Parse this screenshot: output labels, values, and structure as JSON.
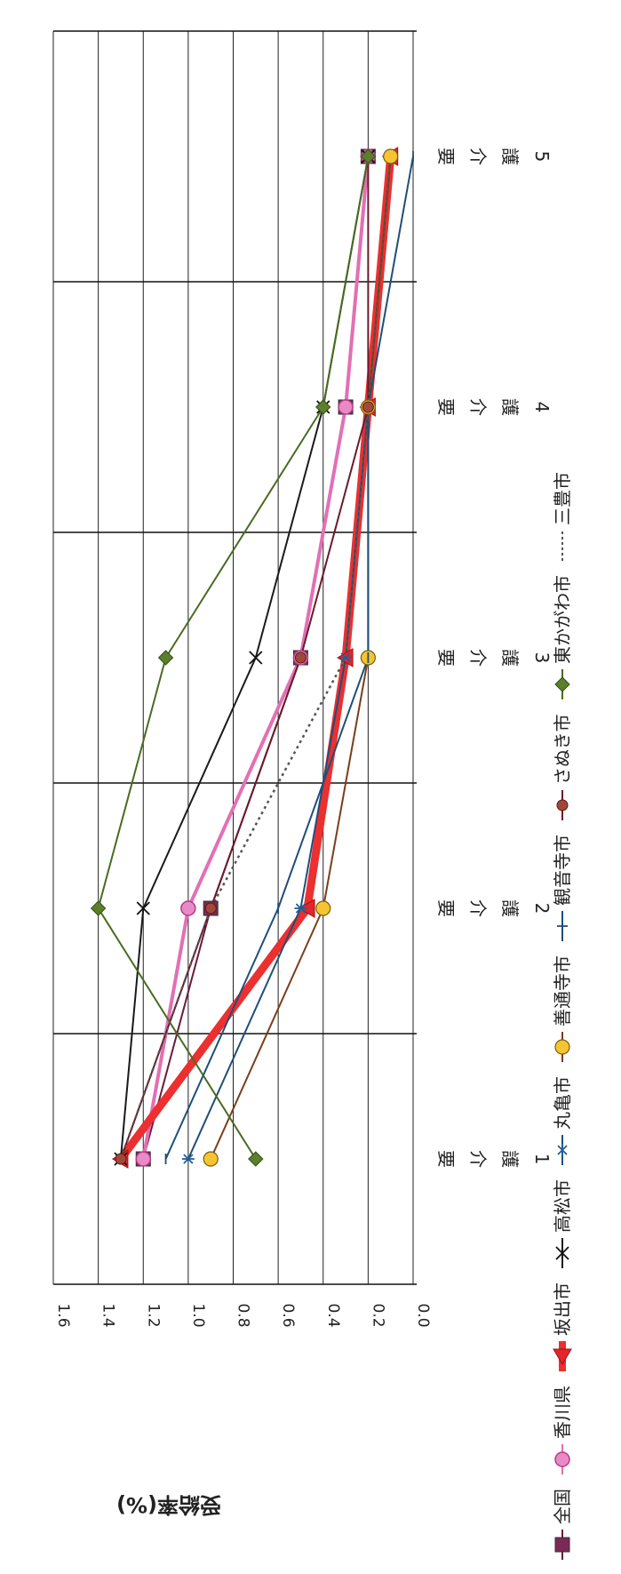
{
  "chart_data": {
    "type": "line",
    "ylabel": "受給率(%)",
    "ylim": [
      0,
      1.6
    ],
    "yticks": [
      "0.0",
      "0.2",
      "0.4",
      "0.6",
      "0.8",
      "1.0",
      "1.2",
      "1.4",
      "1.6"
    ],
    "categories": [
      {
        "label": "要介護",
        "num": "1"
      },
      {
        "label": "要介護",
        "num": "2"
      },
      {
        "label": "要介護",
        "num": "3"
      },
      {
        "label": "要介護",
        "num": "4"
      },
      {
        "label": "要介護",
        "num": "5"
      }
    ],
    "grid": true,
    "legend_position": "top",
    "series": [
      {
        "name": "全国",
        "values": [
          1.2,
          0.9,
          0.5,
          0.3,
          0.2
        ],
        "color": "#6a1b3d",
        "marker": "square"
      },
      {
        "name": "香川県",
        "values": [
          1.2,
          1.0,
          0.5,
          0.3,
          0.2
        ],
        "color": "#e36fb4",
        "marker": "circle"
      },
      {
        "name": "坂出市",
        "values": [
          1.3,
          0.47,
          0.3,
          0.2,
          0.1
        ],
        "color": "#e3262b",
        "marker": "triangle"
      },
      {
        "name": "高松市",
        "values": [
          1.3,
          1.2,
          0.7,
          0.4,
          0.2
        ],
        "color": "#1a1a1a",
        "marker": "x"
      },
      {
        "name": "丸亀市",
        "values": [
          1.0,
          0.5,
          0.3,
          0.2,
          0.1
        ],
        "color": "#1f4e79",
        "marker": "star"
      },
      {
        "name": "善通寺市",
        "values": [
          0.9,
          0.4,
          0.2,
          0.2,
          0.1
        ],
        "color": "#7a3e1a",
        "marker": "circle-yellow"
      },
      {
        "name": "観音寺市",
        "values": [
          1.1,
          0.6,
          0.2,
          0.2,
          0.0
        ],
        "color": "#1f4e79",
        "marker": "plus"
      },
      {
        "name": "さぬき市",
        "values": [
          1.3,
          0.9,
          0.5,
          0.2,
          0.2
        ],
        "color": "#6b1a2a",
        "marker": "circle-brown"
      },
      {
        "name": "東かがわ市",
        "values": [
          0.7,
          1.4,
          1.1,
          0.4,
          0.2
        ],
        "color": "#4a6b22",
        "marker": "diamond"
      },
      {
        "name": "三豊市",
        "values": [
          1.3,
          0.9,
          0.3,
          0.2,
          0.1
        ],
        "color": "#555555",
        "marker": "none"
      }
    ]
  }
}
